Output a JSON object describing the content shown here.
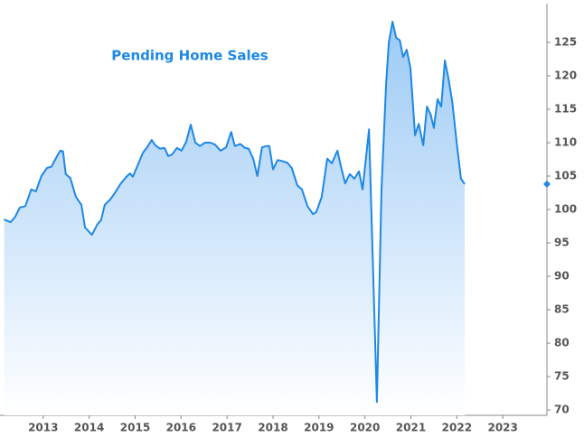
{
  "chart_data": {
    "type": "area-line",
    "title": "Pending Home Sales",
    "color": "#1e88e5",
    "x": [
      2012.15,
      2012.29,
      2012.39,
      2012.49,
      2012.61,
      2012.74,
      2012.84,
      2012.96,
      2013.08,
      2013.18,
      2013.28,
      2013.37,
      2013.43,
      2013.49,
      2013.59,
      2013.71,
      2013.83,
      2013.91,
      2014.06,
      2014.18,
      2014.26,
      2014.34,
      2014.46,
      2014.57,
      2014.69,
      2014.81,
      2014.89,
      2014.95,
      2015.05,
      2015.17,
      2015.26,
      2015.36,
      2015.44,
      2015.54,
      2015.64,
      2015.72,
      2015.8,
      2015.91,
      2016.01,
      2016.11,
      2016.21,
      2016.31,
      2016.41,
      2016.52,
      2016.64,
      2016.74,
      2016.86,
      2016.98,
      2017.09,
      2017.17,
      2017.29,
      2017.39,
      2017.47,
      2017.57,
      2017.66,
      2017.76,
      2017.86,
      2017.92,
      2018.0,
      2018.1,
      2018.22,
      2018.31,
      2018.41,
      2018.53,
      2018.63,
      2018.75,
      2018.87,
      2018.94,
      2019.06,
      2019.18,
      2019.28,
      2019.4,
      2019.48,
      2019.57,
      2019.67,
      2019.77,
      2019.87,
      2019.95,
      2020.09,
      2020.19,
      2020.26,
      2020.36,
      2020.46,
      2020.52,
      2020.6,
      2020.68,
      2020.76,
      2020.83,
      2020.91,
      2020.99,
      2021.09,
      2021.17,
      2021.27,
      2021.35,
      2021.43,
      2021.5,
      2021.58,
      2021.66,
      2021.74,
      2021.82,
      2021.9,
      2022.0,
      2022.09,
      2022.17
    ],
    "values": [
      98.5,
      98.1,
      98.9,
      100.3,
      100.5,
      103,
      102.7,
      105,
      106.2,
      106.4,
      107.7,
      108.8,
      108.7,
      105.3,
      104.7,
      101.9,
      100.7,
      97.3,
      96.2,
      97.8,
      98.4,
      100.7,
      101.5,
      102.6,
      103.9,
      104.9,
      105.4,
      104.9,
      106.5,
      108.5,
      109.3,
      110.4,
      109.6,
      109.1,
      109.2,
      108,
      108.2,
      109.2,
      108.8,
      110.1,
      112.7,
      110,
      109.5,
      110,
      110,
      109.7,
      108.8,
      109.3,
      111.6,
      109.5,
      109.8,
      109.2,
      109.1,
      107.6,
      105,
      109.3,
      109.5,
      109.5,
      106,
      107.4,
      107.2,
      107,
      106.2,
      103.6,
      103,
      100.5,
      99.3,
      99.6,
      101.9,
      107.6,
      106.9,
      108.8,
      106.4,
      103.9,
      105.3,
      104.6,
      105.7,
      103,
      112,
      88.1,
      71.2,
      103,
      118.8,
      125,
      128.1,
      125.7,
      125.3,
      122.8,
      123.9,
      121.2,
      111.1,
      112.8,
      109.6,
      115.4,
      114.2,
      112.2,
      116.5,
      115.4,
      122.3,
      119.5,
      116.1,
      109.7,
      104.6,
      103.8
    ],
    "xlim": [
      2012.06,
      2023.96
    ],
    "xticks": [
      2013,
      2014,
      2015,
      2016,
      2017,
      2018,
      2019,
      2020,
      2021,
      2022,
      2023
    ],
    "ylim": [
      69.2,
      130.8
    ],
    "yticks": [
      70,
      75,
      80,
      85,
      90,
      95,
      100,
      105,
      110,
      115,
      120,
      125
    ]
  }
}
